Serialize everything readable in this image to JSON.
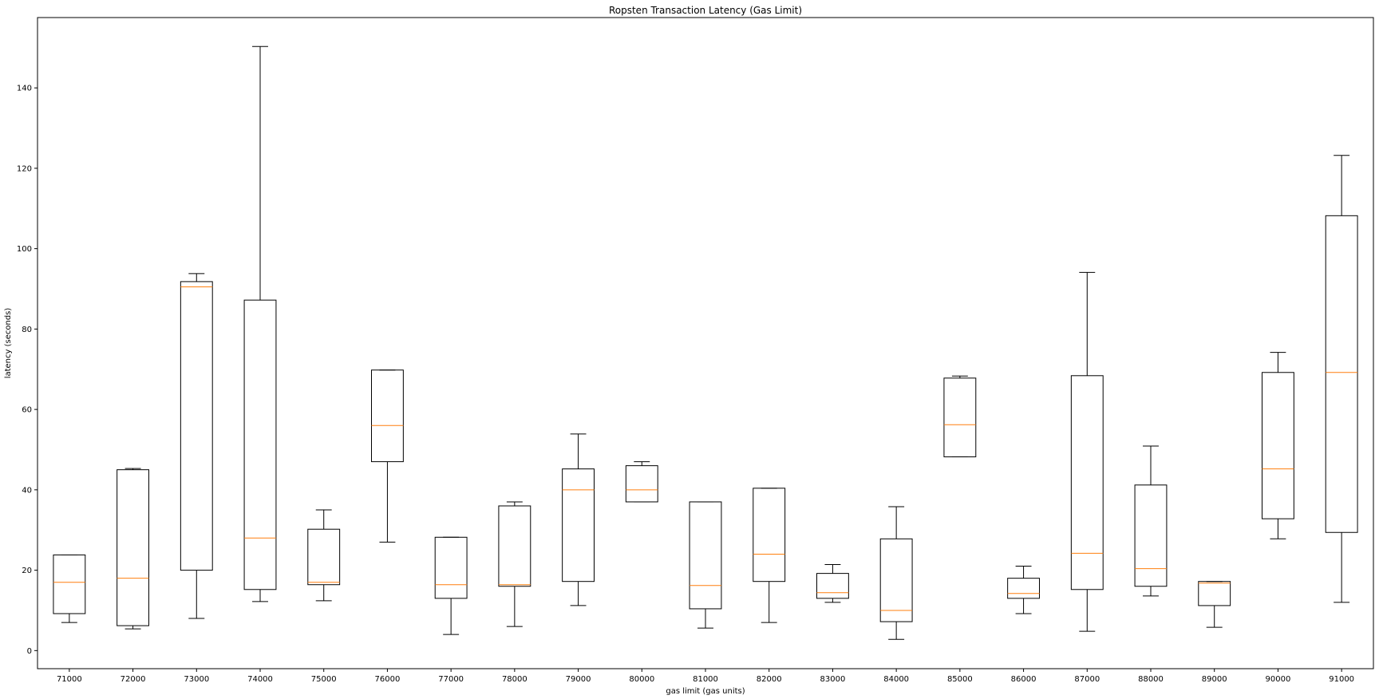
{
  "chart_data": {
    "type": "boxplot",
    "title": "Ropsten Transaction Latency (Gas Limit)",
    "xlabel": "gas limit (gas units)",
    "ylabel": "latency (seconds)",
    "ylim": [
      -4.5,
      157.5
    ],
    "yticks": [
      0,
      20,
      40,
      60,
      80,
      100,
      120,
      140
    ],
    "grid": false,
    "colors": {
      "box": "#000000",
      "median": "#ff7f0e"
    },
    "categories": [
      "71000",
      "72000",
      "73000",
      "74000",
      "75000",
      "76000",
      "77000",
      "78000",
      "79000",
      "80000",
      "81000",
      "82000",
      "83000",
      "84000",
      "85000",
      "86000",
      "87000",
      "88000",
      "89000",
      "90000",
      "91000"
    ],
    "boxes": [
      {
        "whislo": 7.0,
        "q1": 9.2,
        "med": 17.0,
        "q3": 23.8,
        "whishi": 23.8
      },
      {
        "whislo": 5.4,
        "q1": 6.2,
        "med": 18.0,
        "q3": 45.0,
        "whishi": 45.3
      },
      {
        "whislo": 8.0,
        "q1": 20.0,
        "med": 90.5,
        "q3": 91.8,
        "whishi": 93.8
      },
      {
        "whislo": 12.2,
        "q1": 15.2,
        "med": 28.0,
        "q3": 87.2,
        "whishi": 150.3
      },
      {
        "whislo": 12.4,
        "q1": 16.4,
        "med": 17.0,
        "q3": 30.2,
        "whishi": 35.0
      },
      {
        "whislo": 27.0,
        "q1": 47.0,
        "med": 56.0,
        "q3": 69.8,
        "whishi": 69.8
      },
      {
        "whislo": 4.0,
        "q1": 13.0,
        "med": 16.4,
        "q3": 28.2,
        "whishi": 28.2
      },
      {
        "whislo": 6.0,
        "q1": 16.0,
        "med": 16.4,
        "q3": 36.0,
        "whishi": 37.0
      },
      {
        "whislo": 11.2,
        "q1": 17.2,
        "med": 40.0,
        "q3": 45.2,
        "whishi": 53.9
      },
      {
        "whislo": 37.0,
        "q1": 37.0,
        "med": 40.0,
        "q3": 46.0,
        "whishi": 47.0
      },
      {
        "whislo": 5.6,
        "q1": 10.4,
        "med": 16.2,
        "q3": 37.0,
        "whishi": 37.0
      },
      {
        "whislo": 7.0,
        "q1": 17.2,
        "med": 24.0,
        "q3": 40.4,
        "whishi": 40.4
      },
      {
        "whislo": 12.0,
        "q1": 13.0,
        "med": 14.4,
        "q3": 19.2,
        "whishi": 21.4
      },
      {
        "whislo": 2.8,
        "q1": 7.2,
        "med": 10.0,
        "q3": 27.8,
        "whishi": 35.8
      },
      {
        "whislo": 48.2,
        "q1": 48.2,
        "med": 56.2,
        "q3": 67.8,
        "whishi": 68.3
      },
      {
        "whislo": 9.2,
        "q1": 13.0,
        "med": 14.2,
        "q3": 18.0,
        "whishi": 21.0
      },
      {
        "whislo": 4.8,
        "q1": 15.2,
        "med": 24.2,
        "q3": 68.4,
        "whishi": 94.1
      },
      {
        "whislo": 13.6,
        "q1": 16.0,
        "med": 20.4,
        "q3": 41.2,
        "whishi": 50.9
      },
      {
        "whislo": 5.8,
        "q1": 11.2,
        "med": 16.8,
        "q3": 17.2,
        "whishi": 17.2
      },
      {
        "whislo": 27.8,
        "q1": 32.8,
        "med": 45.2,
        "q3": 69.2,
        "whishi": 74.2
      },
      {
        "whislo": 12.0,
        "q1": 29.4,
        "med": 69.2,
        "q3": 108.2,
        "whishi": 123.2
      }
    ]
  }
}
